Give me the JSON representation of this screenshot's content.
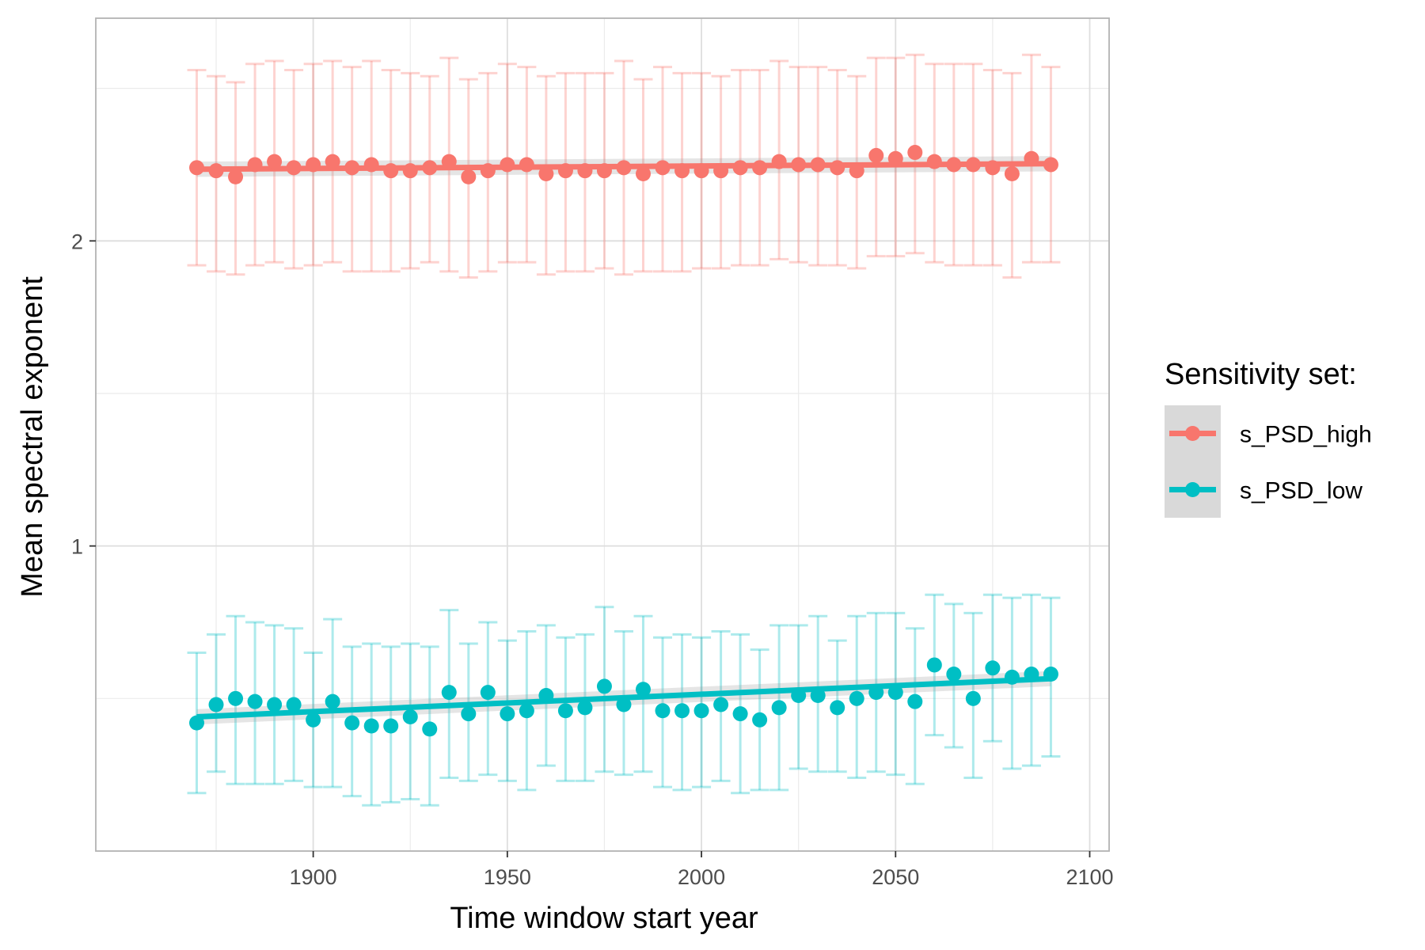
{
  "chart_data": {
    "type": "scatter",
    "xlabel": "Time window start year",
    "ylabel": "Mean spectral exponent",
    "xlim": [
      1844,
      2105
    ],
    "ylim": [
      0.0,
      2.73
    ],
    "x_ticks": [
      1900,
      1950,
      2000,
      2050,
      2100
    ],
    "y_ticks": [
      1,
      2
    ],
    "grid": true,
    "legend": {
      "title": "Sensitivity set:",
      "placement": "right"
    },
    "x": [
      1870,
      1875,
      1880,
      1885,
      1890,
      1895,
      1900,
      1905,
      1910,
      1915,
      1920,
      1925,
      1930,
      1935,
      1940,
      1945,
      1950,
      1955,
      1960,
      1965,
      1970,
      1975,
      1980,
      1985,
      1990,
      1995,
      2000,
      2005,
      2010,
      2015,
      2020,
      2025,
      2030,
      2035,
      2040,
      2045,
      2050,
      2055,
      2060,
      2065,
      2070,
      2075,
      2080,
      2085,
      2090
    ],
    "series": [
      {
        "name": "s_PSD_high",
        "color": "#F8766D",
        "values": [
          2.24,
          2.23,
          2.21,
          2.25,
          2.26,
          2.24,
          2.25,
          2.26,
          2.24,
          2.25,
          2.23,
          2.23,
          2.24,
          2.26,
          2.21,
          2.23,
          2.25,
          2.25,
          2.22,
          2.23,
          2.23,
          2.23,
          2.24,
          2.22,
          2.24,
          2.23,
          2.23,
          2.23,
          2.24,
          2.24,
          2.26,
          2.25,
          2.25,
          2.24,
          2.23,
          2.28,
          2.27,
          2.29,
          2.26,
          2.25,
          2.25,
          2.24,
          2.22,
          2.27,
          2.25
        ],
        "error_low": [
          1.92,
          1.9,
          1.89,
          1.92,
          1.93,
          1.91,
          1.92,
          1.93,
          1.9,
          1.9,
          1.9,
          1.91,
          1.93,
          1.9,
          1.88,
          1.9,
          1.93,
          1.93,
          1.89,
          1.9,
          1.9,
          1.91,
          1.89,
          1.9,
          1.9,
          1.9,
          1.91,
          1.91,
          1.92,
          1.92,
          1.94,
          1.93,
          1.92,
          1.92,
          1.91,
          1.95,
          1.95,
          1.96,
          1.93,
          1.92,
          1.92,
          1.92,
          1.88,
          1.93,
          1.93
        ],
        "error_high": [
          2.56,
          2.54,
          2.52,
          2.58,
          2.59,
          2.56,
          2.58,
          2.59,
          2.57,
          2.59,
          2.56,
          2.55,
          2.54,
          2.6,
          2.53,
          2.55,
          2.58,
          2.57,
          2.54,
          2.55,
          2.55,
          2.55,
          2.59,
          2.53,
          2.57,
          2.55,
          2.55,
          2.54,
          2.56,
          2.56,
          2.59,
          2.57,
          2.57,
          2.56,
          2.54,
          2.6,
          2.6,
          2.61,
          2.58,
          2.58,
          2.58,
          2.56,
          2.55,
          2.61,
          2.57
        ],
        "trend": [
          2.235,
          2.253
        ]
      },
      {
        "name": "s_PSD_low",
        "color": "#00BFC4",
        "values": [
          0.42,
          0.48,
          0.5,
          0.49,
          0.48,
          0.48,
          0.43,
          0.49,
          0.42,
          0.41,
          0.41,
          0.44,
          0.4,
          0.52,
          0.45,
          0.52,
          0.45,
          0.46,
          0.51,
          0.46,
          0.47,
          0.54,
          0.48,
          0.53,
          0.46,
          0.46,
          0.46,
          0.48,
          0.45,
          0.43,
          0.47,
          0.51,
          0.51,
          0.47,
          0.5,
          0.52,
          0.52,
          0.49,
          0.61,
          0.58,
          0.5,
          0.6,
          0.57,
          0.58,
          0.58
        ],
        "error_low": [
          0.19,
          0.26,
          0.22,
          0.22,
          0.22,
          0.23,
          0.21,
          0.21,
          0.18,
          0.15,
          0.16,
          0.17,
          0.15,
          0.24,
          0.23,
          0.25,
          0.23,
          0.2,
          0.28,
          0.23,
          0.23,
          0.26,
          0.25,
          0.26,
          0.21,
          0.2,
          0.21,
          0.23,
          0.19,
          0.2,
          0.2,
          0.27,
          0.26,
          0.26,
          0.24,
          0.26,
          0.25,
          0.22,
          0.38,
          0.34,
          0.24,
          0.36,
          0.27,
          0.28,
          0.31
        ],
        "error_high": [
          0.65,
          0.71,
          0.77,
          0.75,
          0.74,
          0.73,
          0.65,
          0.76,
          0.67,
          0.68,
          0.67,
          0.68,
          0.67,
          0.79,
          0.68,
          0.75,
          0.69,
          0.72,
          0.74,
          0.7,
          0.71,
          0.8,
          0.72,
          0.77,
          0.7,
          0.71,
          0.7,
          0.72,
          0.71,
          0.66,
          0.74,
          0.74,
          0.77,
          0.69,
          0.77,
          0.78,
          0.78,
          0.73,
          0.84,
          0.81,
          0.78,
          0.84,
          0.83,
          0.84,
          0.83
        ],
        "trend": [
          0.44,
          0.565
        ]
      }
    ]
  }
}
